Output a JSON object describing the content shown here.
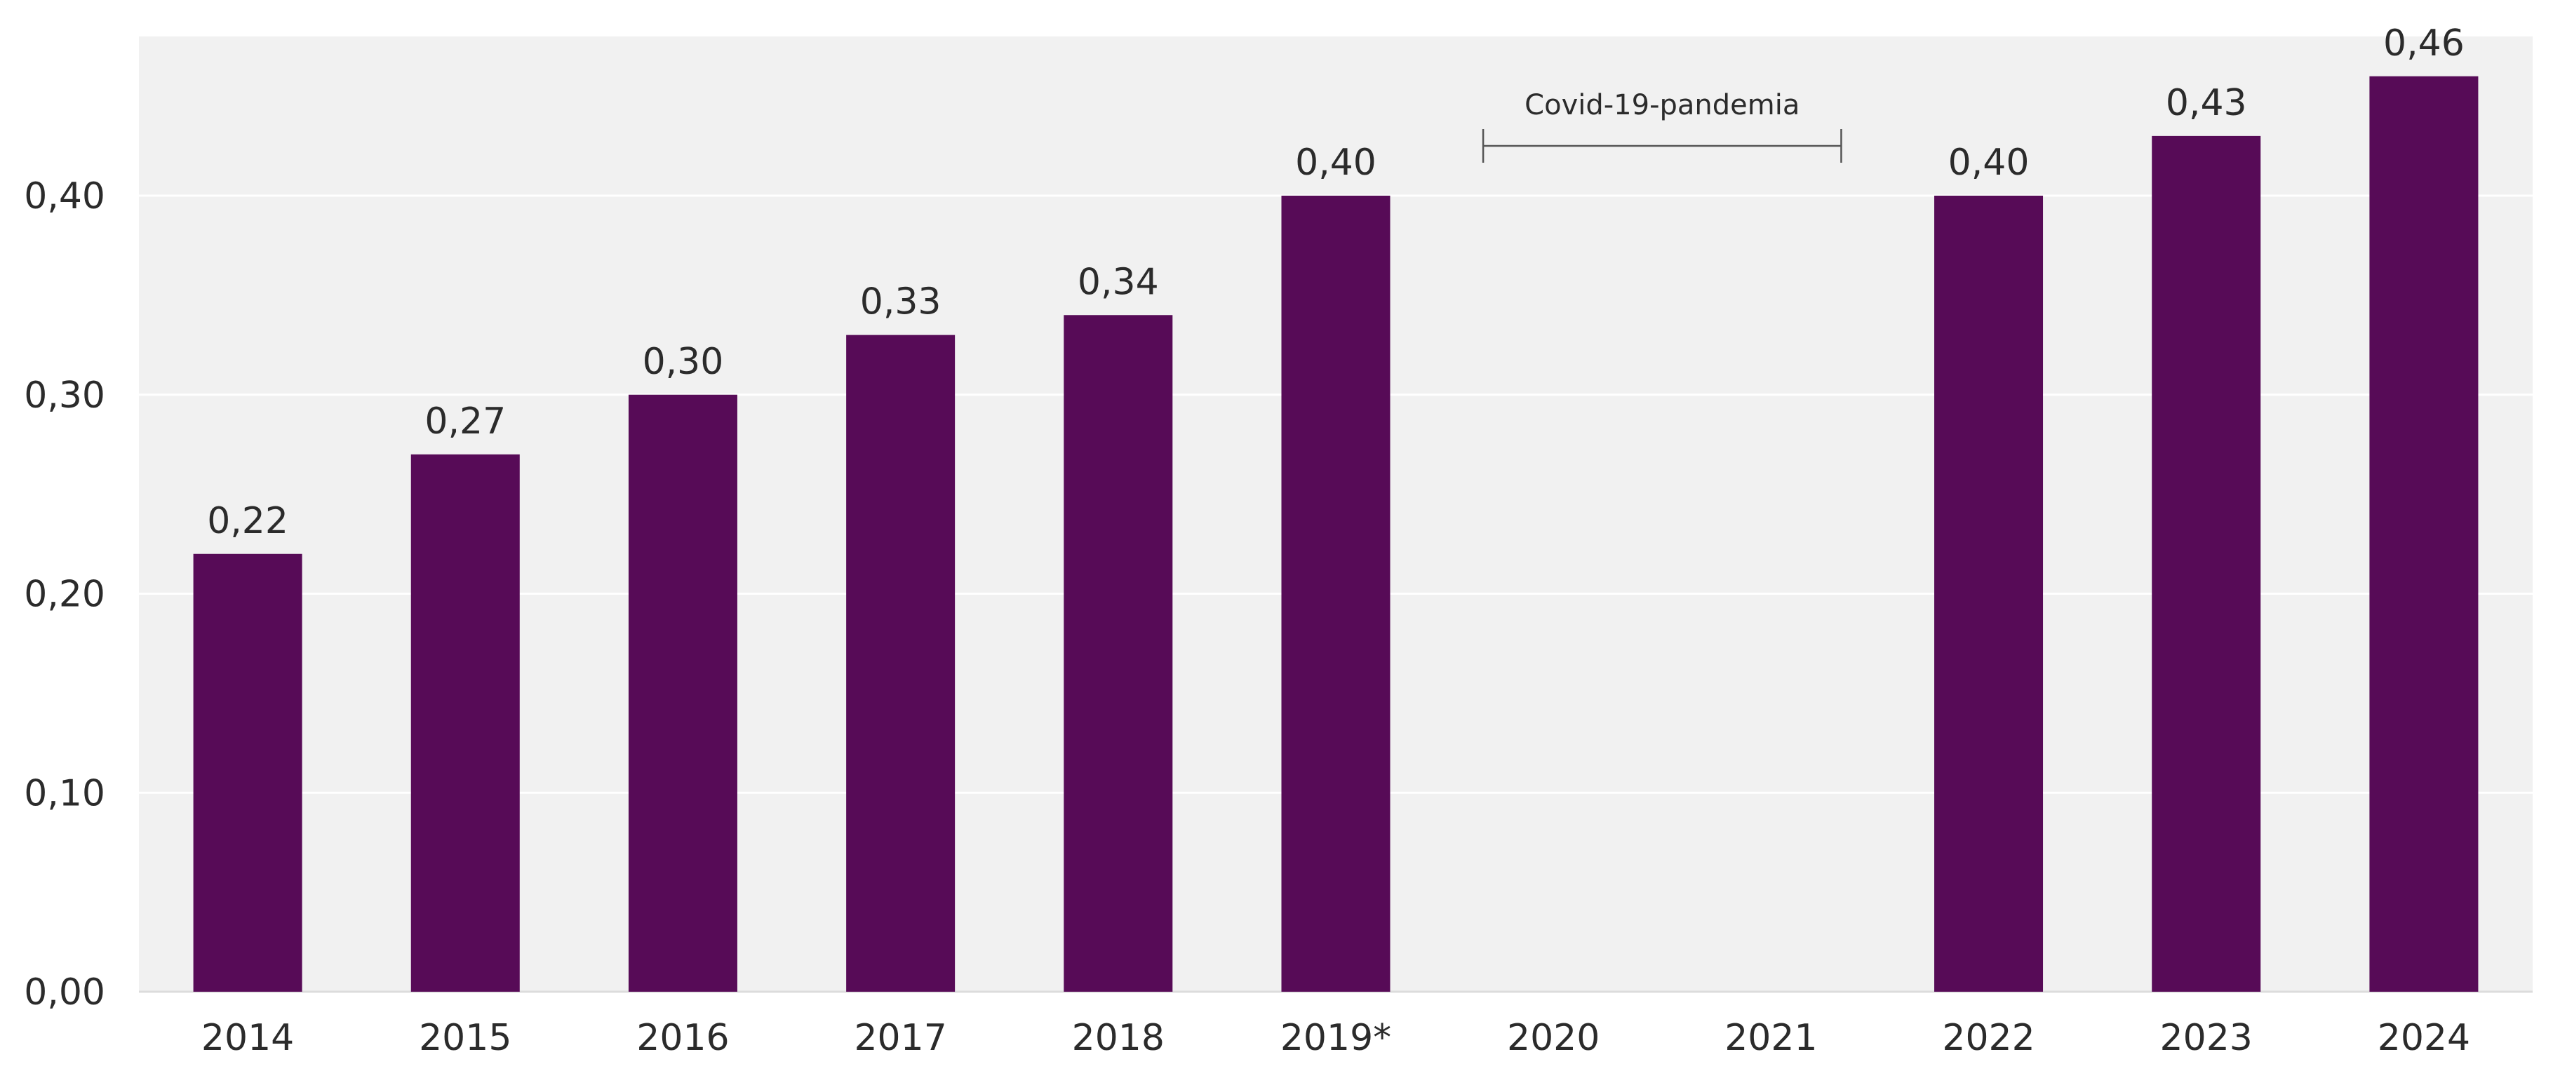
{
  "chart_data": {
    "type": "bar",
    "categories": [
      "2014",
      "2015",
      "2016",
      "2017",
      "2018",
      "2019*",
      "2020",
      "2021",
      "2022",
      "2023",
      "2024"
    ],
    "values": [
      0.22,
      0.27,
      0.3,
      0.33,
      0.34,
      0.4,
      null,
      null,
      0.4,
      0.43,
      0.46
    ],
    "data_labels": [
      "0,22",
      "0,27",
      "0,30",
      "0,33",
      "0,34",
      "0,40",
      "",
      "",
      "0,40",
      "0,43",
      "0,46"
    ],
    "ylim": [
      0,
      0.48
    ],
    "yticks": [
      0,
      0.1,
      0.2,
      0.3,
      0.4
    ],
    "ytick_labels": [
      "0,00",
      "0,10",
      "0,20",
      "0,30",
      "0,40"
    ],
    "title": "",
    "xlabel": "",
    "ylabel": "",
    "grid": true,
    "legend": "none",
    "annotation": {
      "text": "Covid-19-pandemia",
      "spans": [
        "2020",
        "2021"
      ]
    },
    "colors": {
      "bar": "#570b57",
      "plot_background": "#f1f1f1",
      "gridline": "#ffffff",
      "text": "#2b2b2b",
      "annotation_line": "#555555"
    }
  }
}
